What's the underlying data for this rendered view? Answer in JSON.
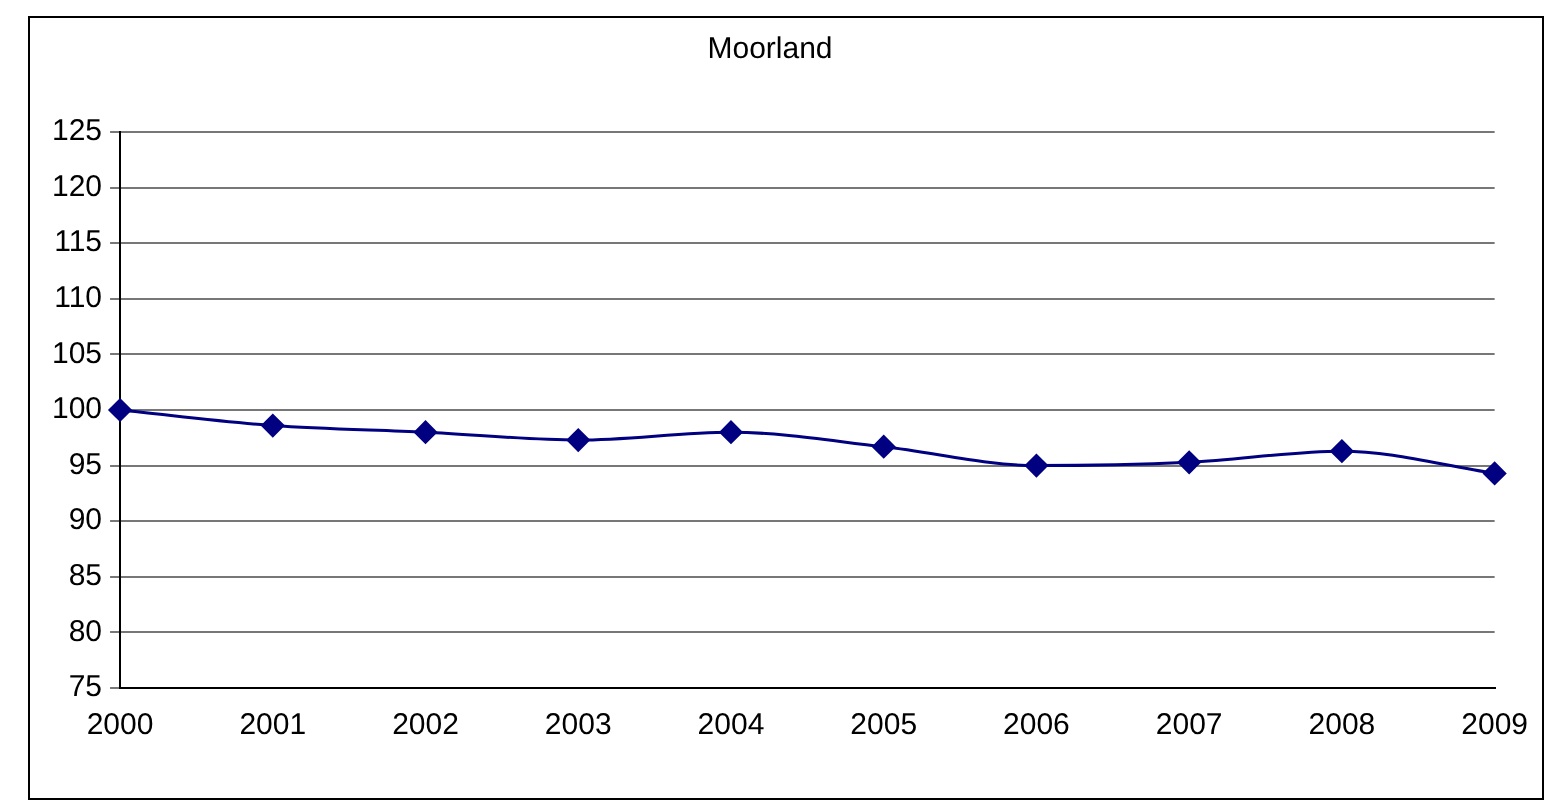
{
  "chart_data": {
    "type": "line",
    "title": "Moorland",
    "categories": [
      "2000",
      "2001",
      "2002",
      "2003",
      "2004",
      "2005",
      "2006",
      "2007",
      "2008",
      "2009"
    ],
    "series": [
      {
        "color": "#000080",
        "values": [
          100,
          98.6,
          98.0,
          97.3,
          98.0,
          96.7,
          95.0,
          95.3,
          96.3,
          94.3
        ]
      }
    ],
    "ylim": [
      75,
      125
    ],
    "yticks": [
      75,
      80,
      85,
      90,
      95,
      100,
      105,
      110,
      115,
      120,
      125
    ],
    "grid": "y",
    "legend": false,
    "marker": "diamond",
    "line_style": "solid"
  }
}
